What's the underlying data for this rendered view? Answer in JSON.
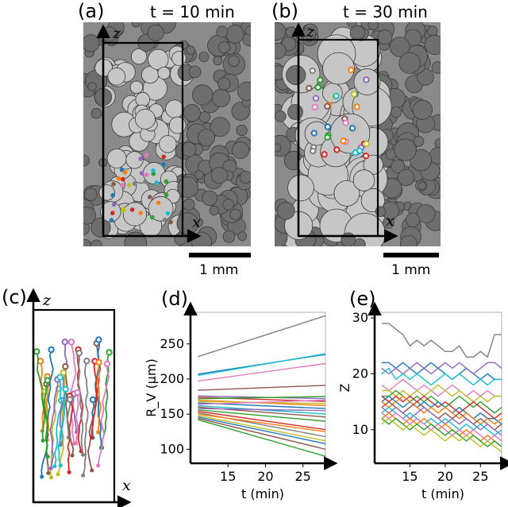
{
  "panels": {
    "a": {
      "label": "(a)",
      "time_title": "t = 10 min",
      "scalebar": "1 mm",
      "axis_x": "x",
      "axis_z": "z"
    },
    "b": {
      "label": "(b)",
      "time_title": "t = 30 min",
      "scalebar": "1 mm",
      "axis_x": "x",
      "axis_z": "z"
    },
    "c": {
      "label": "(c)",
      "axis_x": "x",
      "axis_z": "z"
    },
    "d": {
      "label": "(d)"
    },
    "e": {
      "label": "(e)"
    }
  },
  "colors": {
    "series": [
      "#1f77b4",
      "#ff7f0e",
      "#2ca02c",
      "#d62728",
      "#9467bd",
      "#8c564b",
      "#e377c2",
      "#7f7f7f",
      "#bcbd22",
      "#17becf"
    ],
    "image_bg": "#8a8a8a",
    "bubble_dark": "#6e6e6e",
    "bubble_light": "#c6c6c6"
  },
  "chart_data": [
    {
      "panel": "d",
      "type": "line",
      "xlabel": "t (min)",
      "ylabel": "R_V (µm)",
      "xlim": [
        10,
        28
      ],
      "ylim": [
        80,
        295
      ],
      "xticks": [
        15,
        20,
        25
      ],
      "yticks": [
        100,
        150,
        200,
        250
      ],
      "x": [
        11,
        28
      ],
      "series": [
        {
          "values": [
            232,
            290
          ],
          "color": "#7f7f7f"
        },
        {
          "values": [
            207,
            235
          ],
          "color": "#1f77b4"
        },
        {
          "values": [
            205,
            236
          ],
          "color": "#17becf"
        },
        {
          "values": [
            197,
            222
          ],
          "color": "#e377c2"
        },
        {
          "values": [
            184,
            191
          ],
          "color": "#8c564b"
        },
        {
          "values": [
            176,
            172
          ],
          "color": "#9467bd"
        },
        {
          "values": [
            174,
            168
          ],
          "color": "#d62728"
        },
        {
          "values": [
            172,
            175
          ],
          "color": "#2ca02c"
        },
        {
          "values": [
            170,
            162
          ],
          "color": "#ff7f0e"
        },
        {
          "values": [
            168,
            165
          ],
          "color": "#bcbd22"
        },
        {
          "values": [
            166,
            158
          ],
          "color": "#1f77b4"
        },
        {
          "values": [
            164,
            170
          ],
          "color": "#e377c2"
        },
        {
          "values": [
            162,
            150
          ],
          "color": "#17becf"
        },
        {
          "values": [
            160,
            146
          ],
          "color": "#8c564b"
        },
        {
          "values": [
            158,
            155
          ],
          "color": "#9467bd"
        },
        {
          "values": [
            156,
            140
          ],
          "color": "#2ca02c"
        },
        {
          "values": [
            154,
            128
          ],
          "color": "#d62728"
        },
        {
          "values": [
            152,
            118
          ],
          "color": "#7f7f7f"
        },
        {
          "values": [
            150,
            125
          ],
          "color": "#ff7f0e"
        },
        {
          "values": [
            148,
            112
          ],
          "color": "#bcbd22"
        },
        {
          "values": [
            146,
            108
          ],
          "color": "#1f77b4"
        },
        {
          "values": [
            144,
            100
          ],
          "color": "#8c564b"
        },
        {
          "values": [
            142,
            90
          ],
          "color": "#2ca02c"
        }
      ]
    },
    {
      "panel": "e",
      "type": "line",
      "xlabel": "t (min)",
      "ylabel": "Z",
      "xlim": [
        10,
        28
      ],
      "ylim": [
        4,
        31
      ],
      "xticks": [
        15,
        20,
        25
      ],
      "yticks": [
        10,
        20,
        30
      ],
      "x": [
        11,
        12,
        13,
        14,
        15,
        16,
        17,
        18,
        19,
        20,
        21,
        22,
        23,
        24,
        25,
        26,
        27,
        28
      ],
      "series": [
        {
          "values": [
            29,
            29,
            28,
            27,
            25,
            26,
            25,
            26,
            25,
            24,
            24,
            25,
            23,
            23,
            24,
            23,
            27,
            27
          ],
          "color": "#7f7f7f"
        },
        {
          "values": [
            22,
            22,
            21,
            22,
            21,
            20,
            21,
            22,
            21,
            20,
            19,
            20,
            21,
            20,
            19,
            20,
            19,
            19
          ],
          "color": "#1f77b4"
        },
        {
          "values": [
            21,
            20,
            21,
            20,
            21,
            22,
            21,
            20,
            21,
            22,
            21,
            22,
            21,
            20,
            21,
            22,
            22,
            21
          ],
          "color": "#9467bd"
        },
        {
          "values": [
            20,
            21,
            19,
            20,
            19,
            20,
            19,
            18,
            19,
            20,
            19,
            20,
            19,
            18,
            19,
            18,
            19,
            19
          ],
          "color": "#17becf"
        },
        {
          "values": [
            18,
            17,
            18,
            19,
            18,
            17,
            18,
            17,
            16,
            17,
            18,
            17,
            16,
            17,
            16,
            17,
            16,
            16
          ],
          "color": "#e377c2"
        },
        {
          "values": [
            17,
            17,
            16,
            17,
            16,
            17,
            16,
            17,
            18,
            17,
            16,
            17,
            16,
            15,
            16,
            15,
            16,
            16
          ],
          "color": "#bcbd22"
        },
        {
          "values": [
            16,
            16,
            17,
            16,
            15,
            16,
            15,
            16,
            15,
            14,
            15,
            16,
            15,
            14,
            15,
            14,
            13,
            14
          ],
          "color": "#2ca02c"
        },
        {
          "values": [
            16,
            15,
            16,
            15,
            16,
            15,
            16,
            15,
            14,
            15,
            14,
            13,
            14,
            15,
            14,
            13,
            12,
            13
          ],
          "color": "#d62728"
        },
        {
          "values": [
            15,
            16,
            15,
            14,
            15,
            14,
            15,
            14,
            15,
            14,
            13,
            14,
            13,
            12,
            13,
            12,
            12,
            11
          ],
          "color": "#1f77b4"
        },
        {
          "values": [
            15,
            14,
            15,
            16,
            15,
            14,
            13,
            14,
            13,
            14,
            13,
            12,
            13,
            12,
            11,
            12,
            11,
            12
          ],
          "color": "#ff7f0e"
        },
        {
          "values": [
            14,
            15,
            14,
            13,
            14,
            15,
            14,
            13,
            12,
            13,
            12,
            13,
            12,
            11,
            12,
            11,
            10,
            11
          ],
          "color": "#8c564b"
        },
        {
          "values": [
            14,
            13,
            14,
            13,
            12,
            13,
            14,
            13,
            12,
            11,
            12,
            11,
            12,
            11,
            10,
            11,
            10,
            9
          ],
          "color": "#9467bd"
        },
        {
          "values": [
            13,
            14,
            13,
            12,
            13,
            12,
            11,
            12,
            11,
            12,
            11,
            10,
            11,
            10,
            11,
            10,
            9,
            10
          ],
          "color": "#17becf"
        },
        {
          "values": [
            13,
            12,
            13,
            12,
            11,
            12,
            11,
            10,
            11,
            10,
            9,
            10,
            9,
            10,
            9,
            8,
            9,
            8
          ],
          "color": "#e377c2"
        },
        {
          "values": [
            12,
            13,
            12,
            11,
            12,
            11,
            12,
            11,
            10,
            11,
            10,
            9,
            10,
            9,
            8,
            9,
            8,
            7
          ],
          "color": "#ff7f0e"
        },
        {
          "values": [
            12,
            11,
            12,
            11,
            10,
            11,
            10,
            11,
            10,
            9,
            10,
            9,
            8,
            9,
            8,
            7,
            8,
            7
          ],
          "color": "#2ca02c"
        },
        {
          "values": [
            11,
            12,
            11,
            10,
            11,
            10,
            9,
            10,
            9,
            8,
            9,
            8,
            9,
            8,
            7,
            8,
            7,
            6
          ],
          "color": "#bcbd22"
        }
      ]
    }
  ]
}
